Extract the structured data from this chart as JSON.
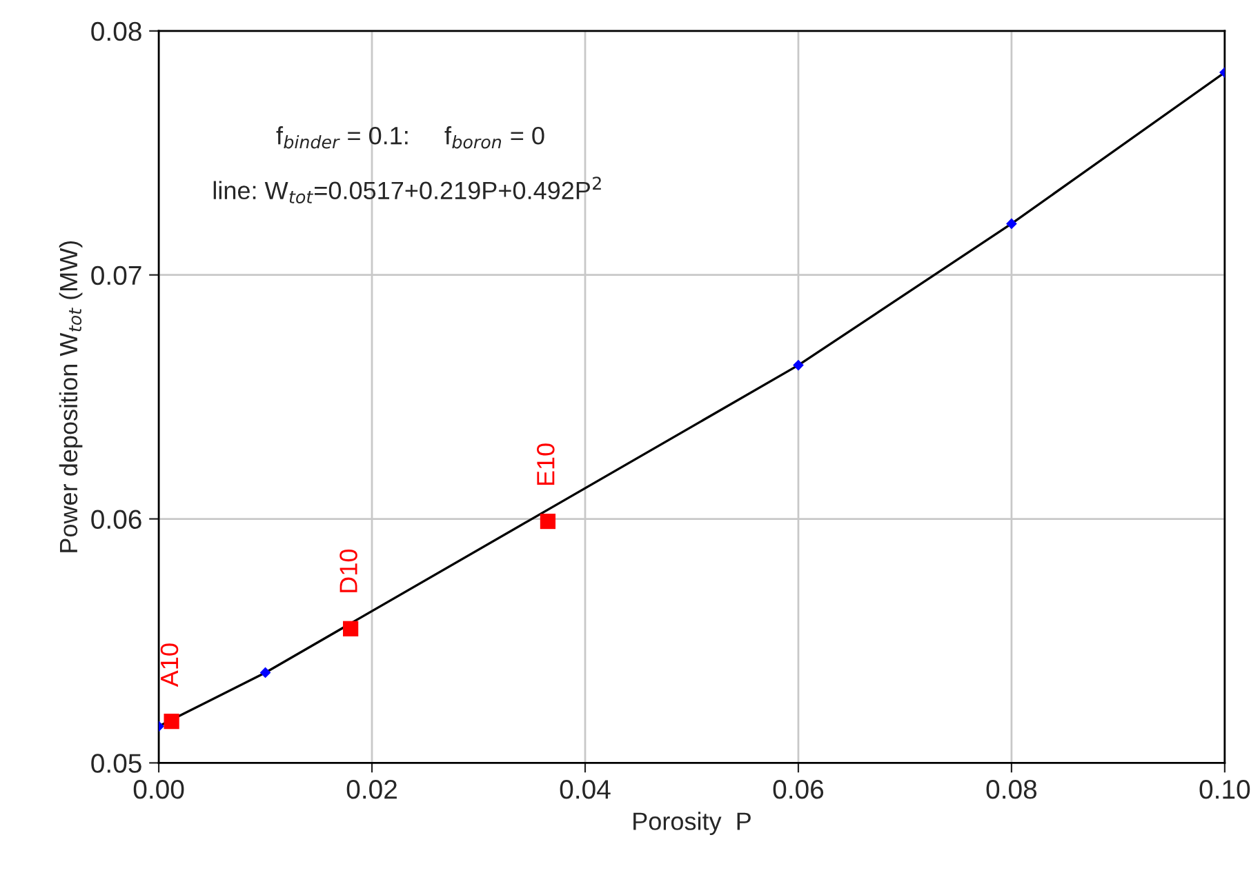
{
  "chart_data": {
    "type": "line",
    "xlabel": "Porosity  P",
    "ylabel": "Power deposition W$_{tot}$ (MW)",
    "xlim": [
      0,
      0.1
    ],
    "ylim": [
      0.05,
      0.08
    ],
    "xticks": [
      {
        "value": 0,
        "label": "0.00"
      },
      {
        "value": 0.02,
        "label": "0.02"
      },
      {
        "value": 0.04,
        "label": "0.04"
      },
      {
        "value": 0.06,
        "label": "0.06"
      },
      {
        "value": 0.08,
        "label": "0.08"
      },
      {
        "value": 0.1,
        "label": "0.10"
      }
    ],
    "yticks": [
      0.05,
      0.06,
      0.07,
      0.08
    ],
    "grid": true,
    "series": [
      {
        "color": "#000000",
        "marker": "none",
        "line_style": "solid",
        "x": [
          0,
          0.01,
          0.06,
          0.08,
          0.1
        ],
        "values": [
          0.0515,
          0.0537,
          0.0663,
          0.0721,
          0.0783
        ]
      },
      {
        "type": "scatter",
        "color": "#0000ff",
        "marker": "diamond",
        "x": [
          0,
          0.01,
          0.06,
          0.08,
          0.1
        ],
        "values": [
          0.0515,
          0.0537,
          0.0663,
          0.0721,
          0.0783
        ]
      },
      {
        "type": "scatter",
        "color": "#ff0000",
        "marker": "square",
        "x": [
          0.0012,
          0.018,
          0.0365
        ],
        "values": [
          0.0517,
          0.0555,
          0.0599
        ]
      }
    ],
    "annotations": [
      "f$_{binder}$ = 0.1:     f$_{boron}$ = 0",
      "line: W$_{tot}$=0.0517+0.219P+0.492P$^{2}$",
      {
        "text": "A10",
        "x": 0.0012,
        "y": 0.0517
      },
      {
        "text": "D10",
        "x": 0.018,
        "y": 0.0555
      },
      {
        "text": "E10",
        "x": 0.0365,
        "y": 0.0599
      }
    ]
  }
}
